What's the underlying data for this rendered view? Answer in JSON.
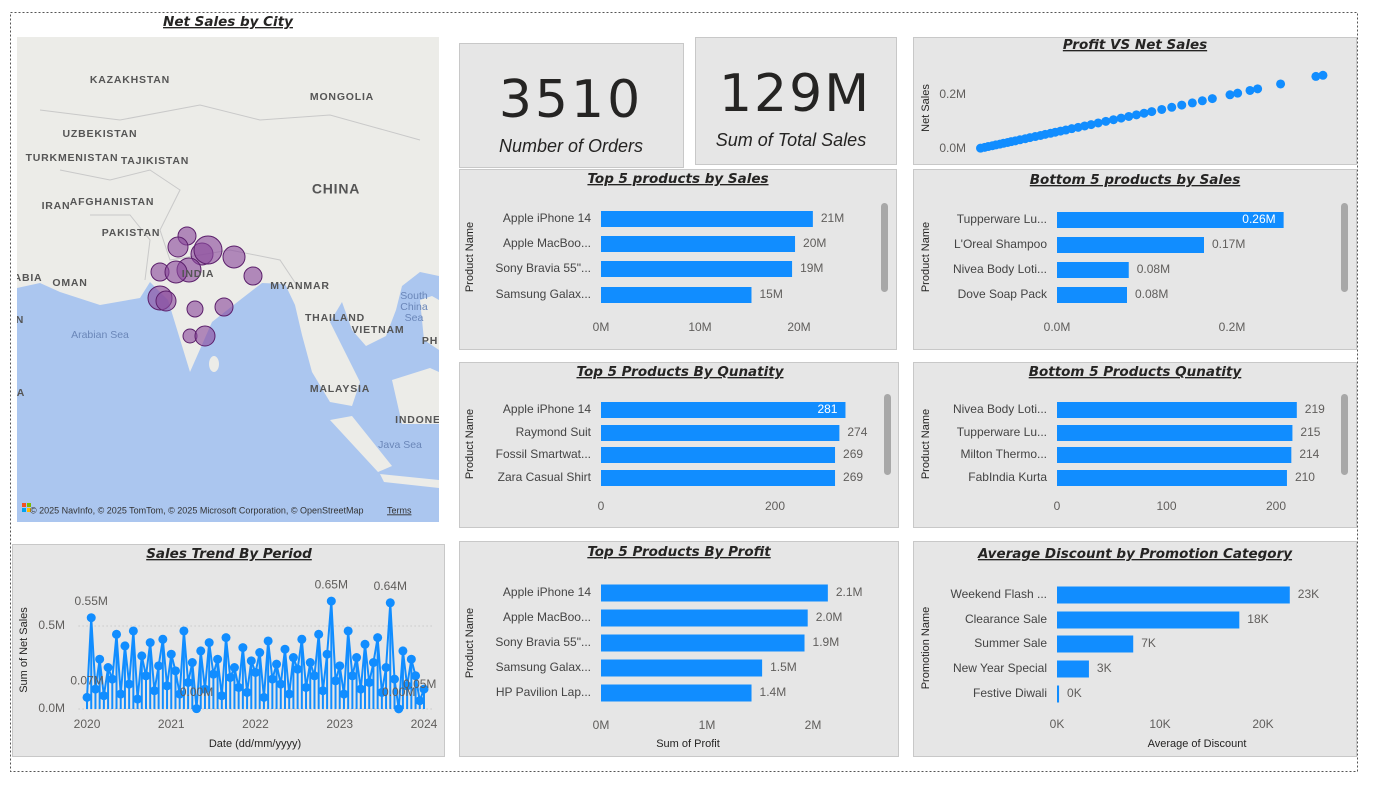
{
  "map": {
    "title": "Net Sales by City",
    "labels": [
      "KAZAKHSTAN",
      "MONGOLIA",
      "UZBEKISTAN",
      "TURKMENISTAN",
      "TAJIKISTAN",
      "CHINA",
      "IRAN",
      "AFGHANISTAN",
      "PAKISTAN",
      "INDIA",
      "ABIA",
      "OMAN",
      "MYANMAR",
      "THAILAND",
      "VIETNAM",
      "South",
      "China",
      "Sea",
      "Arabian Sea",
      "PH",
      "MALAYSIA",
      "A",
      "INDONE",
      "Java Sea",
      "N"
    ],
    "attribution": "© 2025 NavInfo, © 2025 TomTom, © 2025 Microsoft Corporation, © OpenStreetMap",
    "terms": "Terms"
  },
  "cards": [
    {
      "value": "3510",
      "label": "Number of Orders"
    },
    {
      "value": "129M",
      "label": "Sum of Total Sales"
    }
  ],
  "chart_data": [
    {
      "type": "scatter",
      "title": "Profit VS Net Sales",
      "y_label": "Net Sales",
      "color": "#118dff",
      "x": [
        600,
        1300,
        1900,
        2600,
        3200,
        3900,
        4500,
        5200,
        5800,
        6500,
        7300,
        8200,
        9000,
        9900,
        10800,
        11600,
        12500,
        13300,
        14200,
        15100,
        16100,
        17200,
        18300,
        19400,
        20600,
        21900,
        23200,
        24500,
        25800,
        27100,
        28400,
        29700,
        31400,
        33100,
        34800,
        36600,
        38300,
        40000,
        43000,
        44300,
        46400,
        47700,
        51600,
        57600,
        58800
      ],
      "values": [
        3000,
        6000,
        9000,
        12000,
        15000,
        18000,
        21000,
        24000,
        27000,
        30000,
        34000,
        38000,
        42000,
        46000,
        50000,
        54000,
        58000,
        62000,
        66000,
        70000,
        75000,
        80000,
        85000,
        90000,
        96000,
        102000,
        108000,
        114000,
        120000,
        126000,
        132000,
        138000,
        146000,
        154000,
        162000,
        170000,
        178000,
        186000,
        200000,
        206000,
        216000,
        222000,
        240000,
        268000,
        272000
      ],
      "xlim": [
        0,
        60000
      ],
      "ylim": [
        0,
        310000
      ],
      "yticks": [
        {
          "value": 0,
          "label": "0.0M"
        },
        {
          "value": 200000,
          "label": "0.2M"
        }
      ]
    },
    {
      "type": "bar",
      "title": "Top 5 products by Sales",
      "y_label": "Product Name",
      "color": "#118dff",
      "categories": [
        "Apple iPhone 14",
        "Apple MacBoo...",
        "Sony Bravia 55\"...",
        "Samsung Galax..."
      ],
      "values": [
        21400000,
        19600000,
        19300000,
        15200000
      ],
      "value_labels": [
        "21M",
        "20M",
        "19M",
        "15M"
      ],
      "xlim": [
        0,
        26000000
      ],
      "xticks": [
        {
          "value": 0,
          "label": "0M"
        },
        {
          "value": 10000000,
          "label": "10M"
        },
        {
          "value": 20000000,
          "label": "20M"
        }
      ]
    },
    {
      "type": "bar",
      "title": "Bottom 5 products by Sales",
      "y_label": "Product Name",
      "color": "#118dff",
      "categories": [
        "Tupperware Lu...",
        "L'Oreal Shampoo",
        "Nivea Body Loti...",
        "Dove Soap Pack"
      ],
      "values": [
        259000,
        168000,
        82000,
        80000
      ],
      "value_labels": [
        "0.26M",
        "0.17M",
        "0.08M",
        "0.08M"
      ],
      "xlim": [
        0,
        300000
      ],
      "xticks": [
        {
          "value": 0,
          "label": "0.0M"
        },
        {
          "value": 200000,
          "label": "0.2M"
        }
      ]
    },
    {
      "type": "bar",
      "title": "Top 5 Products By Qunatity",
      "y_label": "Product Name",
      "color": "#118dff",
      "categories": [
        "Apple iPhone 14",
        "Raymond Suit",
        "Fossil Smartwat...",
        "Zara Casual Shirt"
      ],
      "values": [
        281,
        274,
        269,
        269
      ],
      "xlim": [
        0,
        310
      ],
      "xticks": [
        0,
        200
      ]
    },
    {
      "type": "bar",
      "title": "Bottom 5 Products Qunatity",
      "y_label": "Product Name",
      "color": "#118dff",
      "categories": [
        "Nivea Body Loti...",
        "Tupperware Lu...",
        "Milton Thermo...",
        "FabIndia Kurta"
      ],
      "values": [
        219,
        215,
        214,
        210
      ],
      "xlim": [
        0,
        250
      ],
      "xticks": [
        0,
        100,
        200
      ]
    },
    {
      "type": "line",
      "title": "Sales Trend By Period",
      "x_label": "Date (dd/mm/yyyy)",
      "y_label": "Sum of Net Sales",
      "color": "#118dff",
      "x": [
        2020,
        2020.05,
        2020.1,
        2020.15,
        2020.2,
        2020.25,
        2020.3,
        2020.35,
        2020.4,
        2020.45,
        2020.5,
        2020.55,
        2020.6,
        2020.65,
        2020.7,
        2020.75,
        2020.8,
        2020.85,
        2020.9,
        2020.95,
        2021,
        2021.05,
        2021.1,
        2021.15,
        2021.2,
        2021.25,
        2021.3,
        2021.35,
        2021.4,
        2021.45,
        2021.5,
        2021.55,
        2021.6,
        2021.65,
        2021.7,
        2021.75,
        2021.8,
        2021.85,
        2021.9,
        2021.95,
        2022,
        2022.05,
        2022.1,
        2022.15,
        2022.2,
        2022.25,
        2022.3,
        2022.35,
        2022.4,
        2022.45,
        2022.5,
        2022.55,
        2022.6,
        2022.65,
        2022.7,
        2022.75,
        2022.8,
        2022.85,
        2022.9,
        2022.95,
        2023,
        2023.05,
        2023.1,
        2023.15,
        2023.2,
        2023.25,
        2023.3,
        2023.35,
        2023.4,
        2023.45,
        2023.5,
        2023.55,
        2023.6,
        2023.65,
        2023.7,
        2023.75,
        2023.8,
        2023.85,
        2023.9,
        2023.95,
        2024
      ],
      "values": [
        70000,
        550000,
        120000,
        300000,
        80000,
        250000,
        180000,
        450000,
        90000,
        380000,
        150000,
        470000,
        60000,
        320000,
        200000,
        400000,
        110000,
        260000,
        420000,
        140000,
        330000,
        230000,
        90000,
        470000,
        160000,
        280000,
        2000,
        350000,
        120000,
        400000,
        210000,
        300000,
        80000,
        430000,
        190000,
        250000,
        130000,
        370000,
        100000,
        290000,
        220000,
        340000,
        70000,
        410000,
        180000,
        270000,
        150000,
        360000,
        90000,
        310000,
        240000,
        420000,
        130000,
        280000,
        200000,
        450000,
        110000,
        330000,
        650000,
        170000,
        260000,
        90000,
        470000,
        200000,
        310000,
        120000,
        390000,
        160000,
        280000,
        430000,
        100000,
        250000,
        640000,
        180000,
        1000,
        350000,
        140000,
        300000,
        200000,
        50000,
        120000
      ],
      "value_labels": [
        "0.07M",
        "0.55M",
        null,
        null,
        null,
        null,
        null,
        null,
        null,
        null,
        null,
        null,
        null,
        null,
        null,
        null,
        null,
        null,
        null,
        null,
        null,
        null,
        null,
        null,
        null,
        null,
        "0.00M",
        null,
        null,
        null,
        null,
        null,
        null,
        null,
        null,
        null,
        null,
        null,
        null,
        null,
        null,
        null,
        null,
        null,
        null,
        null,
        null,
        null,
        null,
        null,
        null,
        null,
        null,
        null,
        null,
        null,
        null,
        null,
        "0.65M",
        null,
        null,
        null,
        null,
        null,
        null,
        null,
        null,
        null,
        null,
        null,
        null,
        null,
        "0.64M",
        null,
        "0.00M",
        null,
        null,
        null,
        null,
        "0.05M",
        null
      ],
      "xlim": [
        2019.9,
        2024.1
      ],
      "xticks": [
        2020,
        2021,
        2022,
        2023,
        2024
      ],
      "ylim": [
        0,
        700000
      ],
      "yticks": [
        {
          "value": 0,
          "label": "0.0M"
        },
        {
          "value": 500000,
          "label": "0.5M"
        }
      ],
      "grid": true
    },
    {
      "type": "bar",
      "title": "Top 5 Products By Profit",
      "y_label": "Product Name",
      "x_label": "Sum of Profit",
      "color": "#118dff",
      "categories": [
        "Apple iPhone 14",
        "Apple MacBoo...",
        "Sony Bravia 55\"...",
        "Samsung Galax...",
        "HP Pavilion Lap..."
      ],
      "values": [
        2140000,
        1950000,
        1920000,
        1520000,
        1420000
      ],
      "value_labels": [
        "2.1M",
        "2.0M",
        "1.9M",
        "1.5M",
        "1.4M"
      ],
      "xlim": [
        0,
        2600000
      ],
      "xticks": [
        {
          "value": 0,
          "label": "0M"
        },
        {
          "value": 1000000,
          "label": "1M"
        },
        {
          "value": 2000000,
          "label": "2M"
        }
      ]
    },
    {
      "type": "bar",
      "title": "Average Discount by Promotion Category",
      "y_label": "Promotion Name",
      "x_label": "Average of Discount",
      "color": "#118dff",
      "categories": [
        "Weekend Flash ...",
        "Clearance Sale",
        "Summer Sale",
        "New Year Special",
        "Festive Diwali"
      ],
      "values": [
        22600,
        17700,
        7400,
        3100,
        200
      ],
      "value_labels": [
        "23K",
        "18K",
        "7K",
        "3K",
        "0K"
      ],
      "xlim": [
        0,
        26000
      ],
      "xticks": [
        {
          "value": 0,
          "label": "0K"
        },
        {
          "value": 10000,
          "label": "10K"
        },
        {
          "value": 20000,
          "label": "20K"
        }
      ]
    }
  ]
}
